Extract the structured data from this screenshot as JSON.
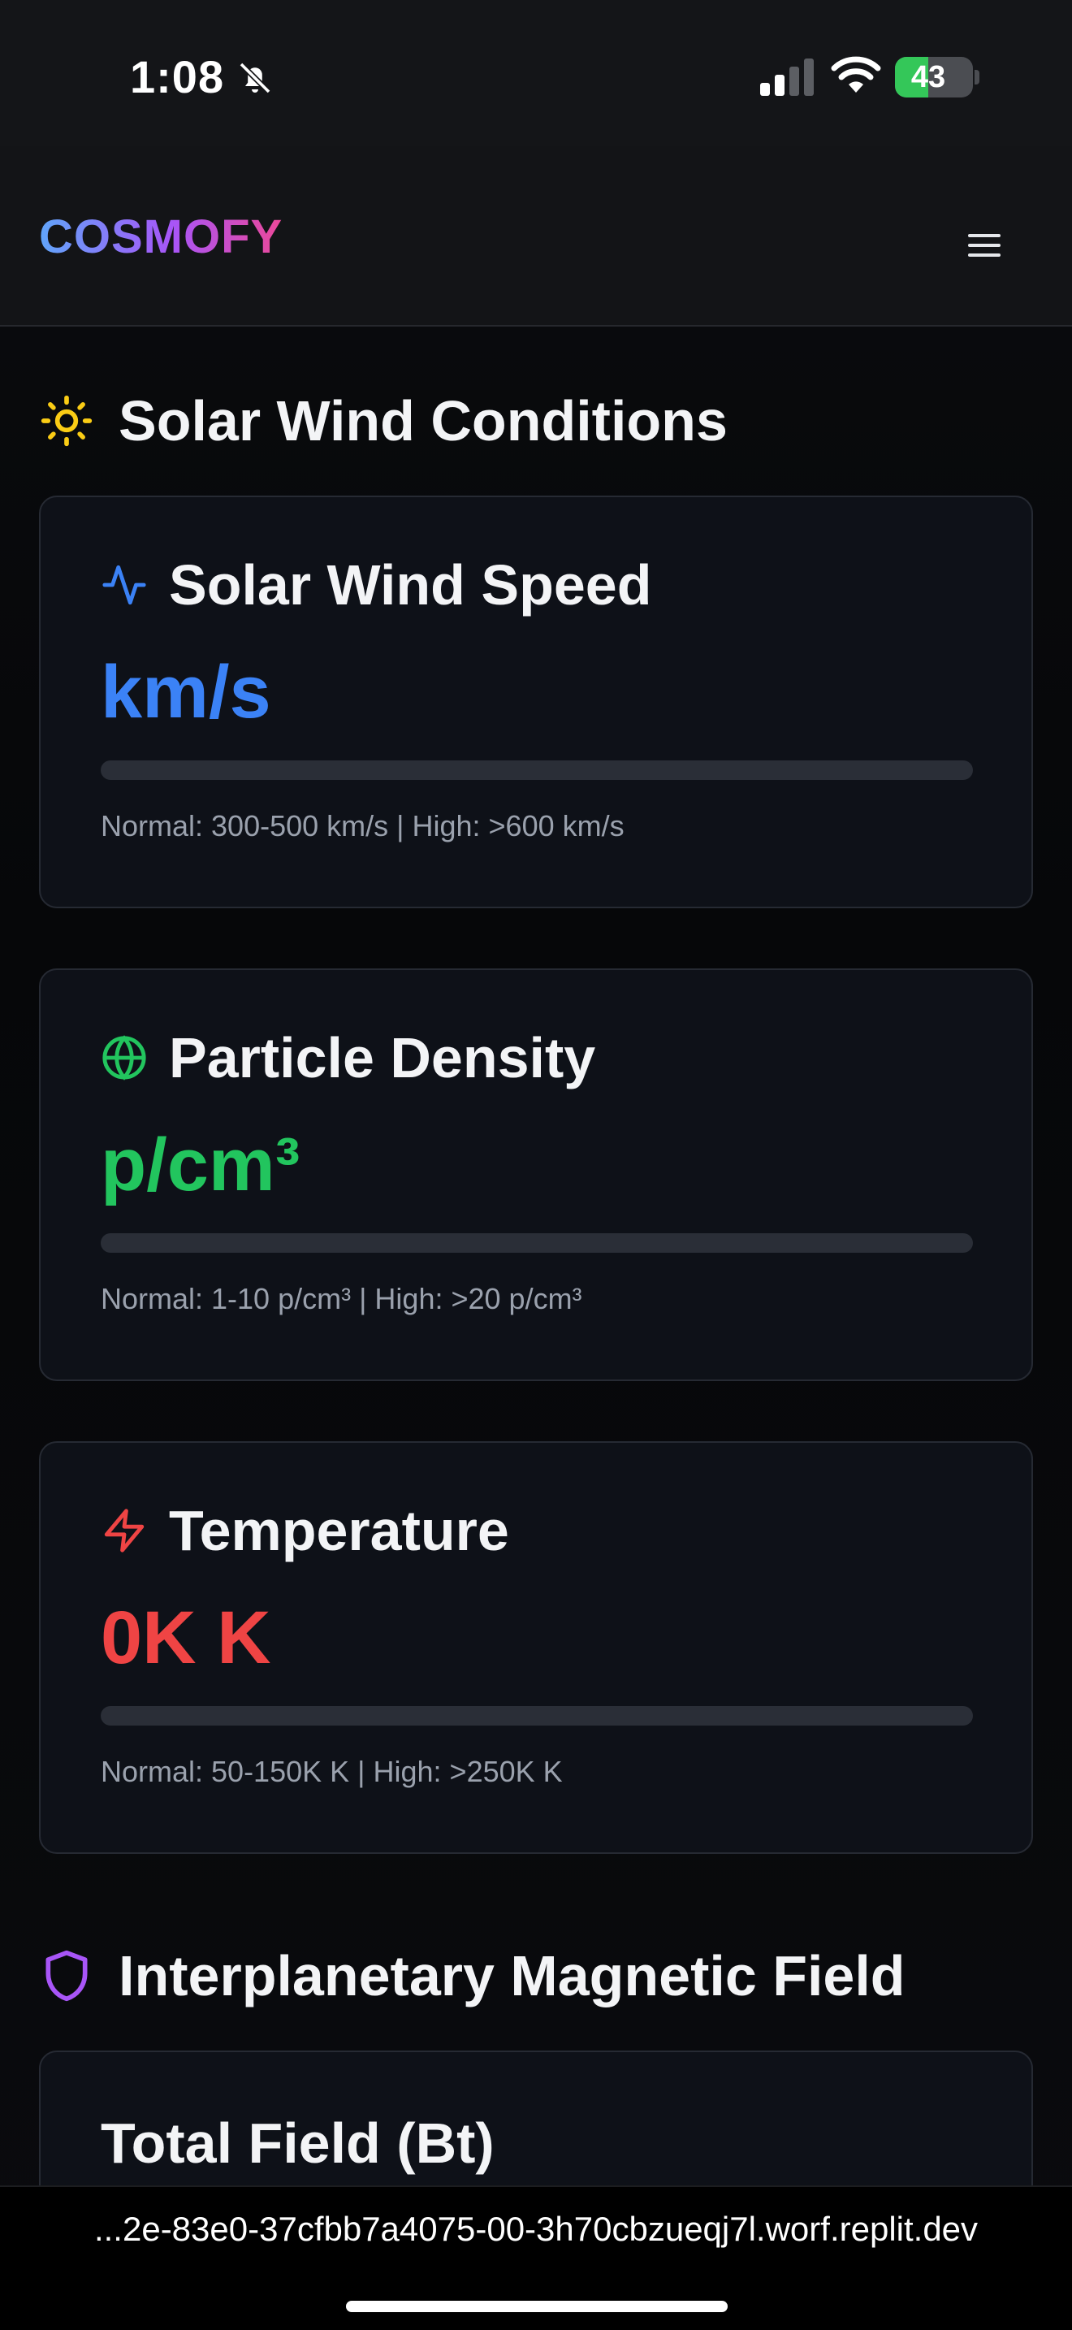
{
  "status_bar": {
    "time": "1:08",
    "battery_percent": 43,
    "battery_label": "43"
  },
  "header": {
    "logo": "COSMOFY",
    "menu_icon": "hamburger-menu-icon"
  },
  "solar_section": {
    "title": "Solar Wind Conditions",
    "icon": "sun-icon",
    "cards": [
      {
        "icon": "activity-pulse-icon",
        "label": "Solar Wind Speed",
        "value": "km/s",
        "progress": 0,
        "note": "Normal: 300-500 km/s | High: >600 km/s",
        "color": "#3b82f6"
      },
      {
        "icon": "globe-icon",
        "label": "Particle Density",
        "value": "p/cm³",
        "progress": 0,
        "note": "Normal: 1-10 p/cm³ | High: >20 p/cm³",
        "color": "#22c55e"
      },
      {
        "icon": "lightning-bolt-icon",
        "label": "Temperature",
        "value": "0K K",
        "progress": 0,
        "note": "Normal: 50-150K K | High: >250K K",
        "color": "#ef4444"
      }
    ]
  },
  "magnetic_section": {
    "title": "Interplanetary Magnetic Field",
    "icon": "shield-icon",
    "color": "#a855f7",
    "card_label": "Total Field (Bt)"
  },
  "url_bar": {
    "url": "...2e-83e0-37cfbb7a4075-00-3h70cbzueqj7l.worf.replit.dev"
  }
}
